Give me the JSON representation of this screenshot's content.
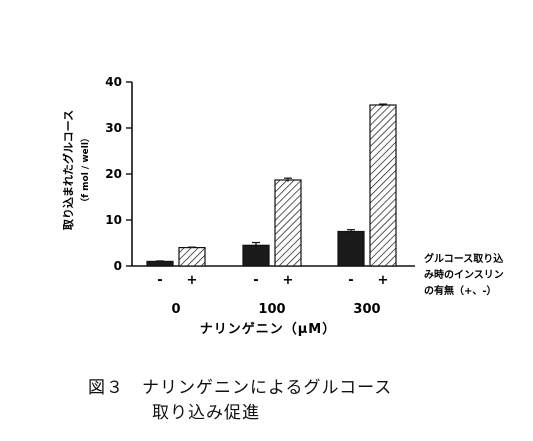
{
  "chart_data": {
    "type": "bar",
    "categories": [
      "0",
      "100",
      "300"
    ],
    "xlabel": "ナリンゲニン（μM）",
    "ylabel_main": "取り込まれたグルコース",
    "ylabel_unit": "（f mol / well）",
    "ylim": [
      0,
      40
    ],
    "yticks": [
      "0",
      "10",
      "20",
      "30",
      "40"
    ],
    "insulin_marks": [
      "-",
      "+"
    ],
    "legend_lines": [
      "グルコース取り込",
      "み時のインスリン",
      "の有無（+、-）"
    ],
    "legend_position": "right",
    "grid": false,
    "series": [
      {
        "name": "-",
        "values": [
          1.0,
          4.5,
          7.5
        ],
        "errors": [
          0.1,
          0.6,
          0.4
        ],
        "color": "#1a1a1a",
        "pattern": "solid"
      },
      {
        "name": "+",
        "values": [
          4.0,
          18.7,
          35.0
        ],
        "errors": [
          0.1,
          0.4,
          0.2
        ],
        "color": "#ffffff",
        "pattern": "diagonal-hatch"
      }
    ]
  },
  "caption": {
    "line1": "図３　ナリンゲニンによるグルコース",
    "line2": "取り込み促進"
  }
}
